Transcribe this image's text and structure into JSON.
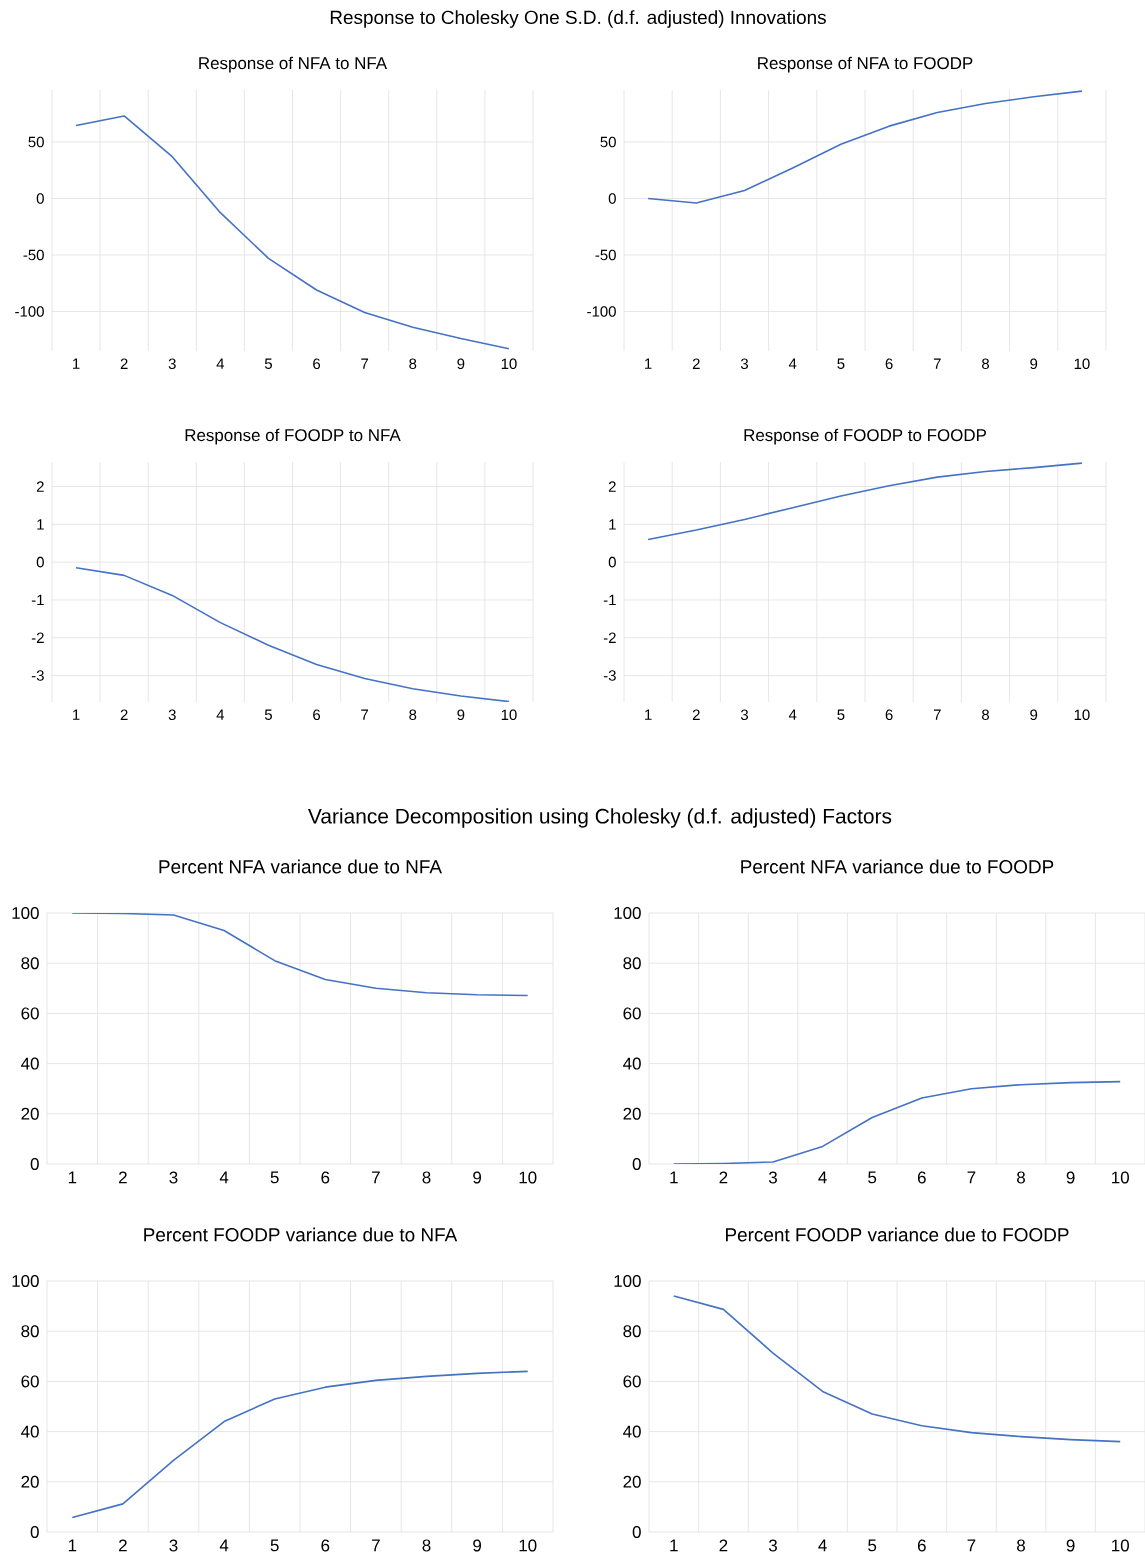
{
  "chart_data": [
    {
      "type": "line",
      "title": "Response of NFA to NFA",
      "annotations": [
        "Response to Cholesky One S.D. (d.f. adjusted) Innovations"
      ],
      "categories": [
        "1",
        "2",
        "3",
        "4",
        "5",
        "6",
        "7",
        "8",
        "9",
        "10"
      ],
      "values": [
        64.5,
        73,
        37,
        -12.6,
        -53,
        -81,
        -101,
        -114,
        -124,
        -133
      ],
      "color": "#4472c4",
      "ylim": [
        -135,
        96
      ],
      "yticks": [
        -100,
        -50,
        0,
        50
      ],
      "grid": true
    },
    {
      "type": "line",
      "title": "Response of NFA to FOODP",
      "categories": [
        "1",
        "2",
        "3",
        "4",
        "5",
        "6",
        "7",
        "8",
        "9",
        "10"
      ],
      "values": [
        0,
        -4,
        7,
        27,
        48,
        64,
        76,
        84,
        90,
        95
      ],
      "color": "#4472c4",
      "ylim": [
        -135,
        96
      ],
      "yticks": [
        -100,
        -50,
        0,
        50
      ],
      "grid": true
    },
    {
      "type": "line",
      "title": "Response of FOODP to NFA",
      "categories": [
        "1",
        "2",
        "3",
        "4",
        "5",
        "6",
        "7",
        "8",
        "9",
        "10"
      ],
      "values": [
        -0.15,
        -0.35,
        -0.88,
        -1.6,
        -2.2,
        -2.71,
        -3.08,
        -3.35,
        -3.54,
        -3.69
      ],
      "color": "#4472c4",
      "ylim": [
        -3.7,
        2.65
      ],
      "yticks": [
        -3,
        -2,
        -1,
        0,
        1,
        2
      ],
      "grid": true
    },
    {
      "type": "line",
      "title": "Response of FOODP to FOODP",
      "categories": [
        "1",
        "2",
        "3",
        "4",
        "5",
        "6",
        "7",
        "8",
        "9",
        "10"
      ],
      "values": [
        0.6,
        0.85,
        1.13,
        1.44,
        1.75,
        2.02,
        2.25,
        2.4,
        2.5,
        2.62
      ],
      "color": "#4472c4",
      "ylim": [
        -3.7,
        2.65
      ],
      "yticks": [
        -3,
        -2,
        -1,
        0,
        1,
        2
      ],
      "grid": true
    },
    {
      "type": "line",
      "title": "Percent NFA variance due to NFA",
      "annotations": [
        "Variance Decomposition using Cholesky (d.f. adjusted) Factors"
      ],
      "categories": [
        "1",
        "2",
        "3",
        "4",
        "5",
        "6",
        "7",
        "8",
        "9",
        "10"
      ],
      "values": [
        100,
        99.8,
        99.2,
        93,
        81,
        73.5,
        70,
        68.2,
        67.4,
        67.1
      ],
      "color": "#4472c4",
      "ylim": [
        0,
        100
      ],
      "yticks": [
        0,
        20,
        40,
        60,
        80,
        100
      ],
      "grid": true
    },
    {
      "type": "line",
      "title": "Percent NFA variance due to FOODP",
      "categories": [
        "1",
        "2",
        "3",
        "4",
        "5",
        "6",
        "7",
        "8",
        "9",
        "10"
      ],
      "values": [
        0,
        0.2,
        0.8,
        7,
        18.5,
        26.3,
        30,
        31.6,
        32.4,
        32.8
      ],
      "color": "#4472c4",
      "ylim": [
        0,
        100
      ],
      "yticks": [
        0,
        20,
        40,
        60,
        80,
        100
      ],
      "grid": true
    },
    {
      "type": "line",
      "title": "Percent FOODP variance due to NFA",
      "categories": [
        "1",
        "2",
        "3",
        "4",
        "5",
        "6",
        "7",
        "8",
        "9",
        "10"
      ],
      "values": [
        5.8,
        11.2,
        28.5,
        44,
        53,
        57.7,
        60.4,
        62,
        63.2,
        64
      ],
      "color": "#4472c4",
      "ylim": [
        0,
        100
      ],
      "yticks": [
        0,
        20,
        40,
        60,
        80,
        100
      ],
      "grid": true
    },
    {
      "type": "line",
      "title": "Percent FOODP variance due to FOODP",
      "categories": [
        "1",
        "2",
        "3",
        "4",
        "5",
        "6",
        "7",
        "8",
        "9",
        "10"
      ],
      "values": [
        94,
        88.7,
        71.3,
        56,
        47,
        42.3,
        39.6,
        38,
        36.8,
        36
      ],
      "color": "#4472c4",
      "ylim": [
        0,
        100
      ],
      "yticks": [
        0,
        20,
        40,
        60,
        80,
        100
      ],
      "grid": true
    }
  ]
}
